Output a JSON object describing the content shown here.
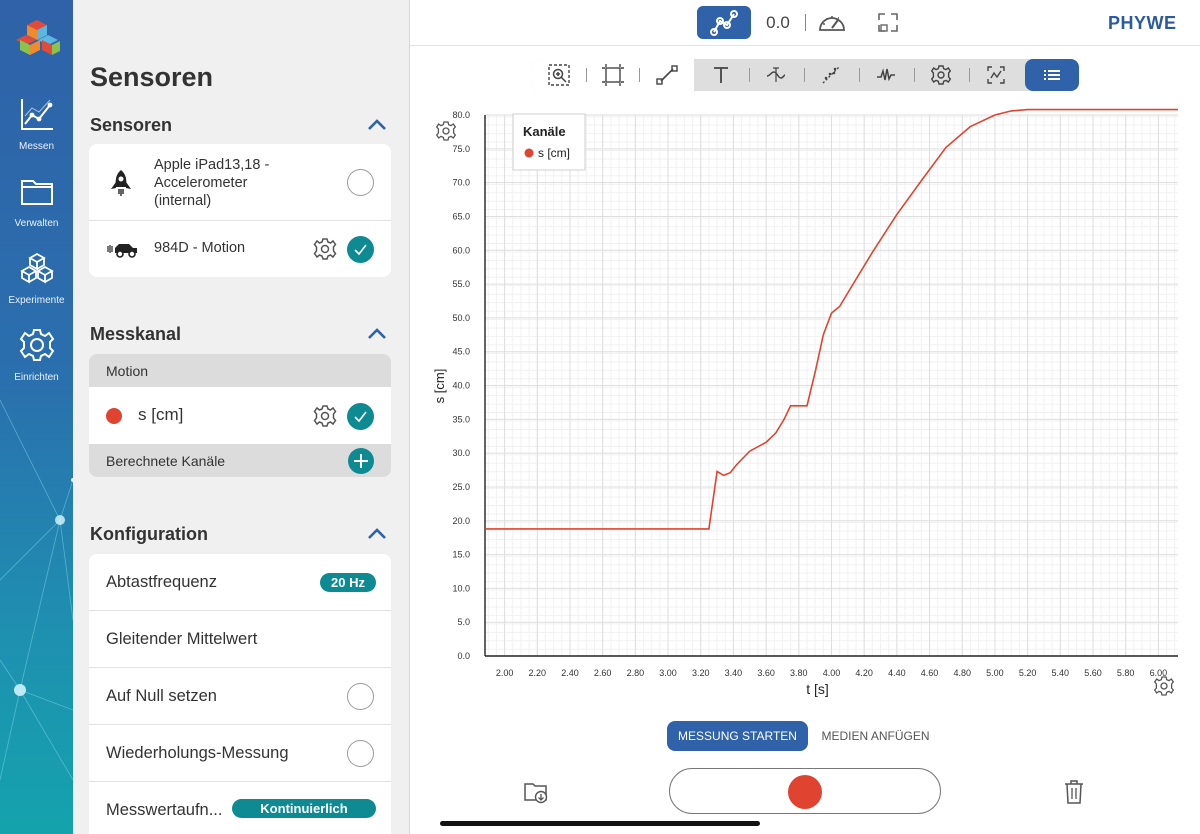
{
  "brand": "PHYWE",
  "colors": {
    "accent": "#2f62a8",
    "teal": "#0e8a93",
    "series": "#e0432f"
  },
  "rail": {
    "items": [
      {
        "label": "Messen",
        "icon": "chart-line-icon"
      },
      {
        "label": "Verwalten",
        "icon": "folder-icon"
      },
      {
        "label": "Experimente",
        "icon": "cubes-icon"
      },
      {
        "label": "Einrichten",
        "icon": "gear-icon"
      }
    ]
  },
  "panel": {
    "title": "Sensoren",
    "sensors": {
      "heading": "Sensoren",
      "items": [
        {
          "name": "Apple iPad13,18 - Accelerometer (internal)",
          "line1": "Apple iPad13,18 -",
          "line2": "Accelerometer",
          "line3": "(internal)",
          "selected": false
        },
        {
          "name": "984D - Motion",
          "selected": true
        }
      ]
    },
    "channel": {
      "heading": "Messkanal",
      "group": "Motion",
      "item": "s [cm]",
      "computed": "Berechnete Kanäle"
    },
    "config": {
      "heading": "Konfiguration",
      "rows": [
        {
          "label": "Abtastfrequenz",
          "value": "20 Hz"
        },
        {
          "label": "Gleitender Mittelwert"
        },
        {
          "label": "Auf Null setzen",
          "enabled": false
        },
        {
          "label": "Wiederholungs-Messung",
          "enabled": false
        },
        {
          "label": "Messwertaufn...",
          "value": "Kontinuierlich"
        }
      ]
    }
  },
  "topbar": {
    "value_readout": "0.0"
  },
  "bottom": {
    "start_label": "MESSUNG STARTEN",
    "media_label": "MEDIEN ANFÜGEN"
  },
  "chart_data": {
    "type": "line",
    "title": "",
    "legend_title": "Kanäle",
    "legend_position": "top-left",
    "xlabel": "t [s]",
    "ylabel": "s [cm]",
    "xlim": [
      1.88,
      6.12
    ],
    "ylim": [
      0,
      80
    ],
    "grid": true,
    "x_ticks": [
      "2.00",
      "2.20",
      "2.40",
      "2.60",
      "2.80",
      "3.00",
      "3.20",
      "3.40",
      "3.60",
      "3.80",
      "4.00",
      "4.20",
      "4.40",
      "4.60",
      "4.80",
      "5.00",
      "5.20",
      "5.40",
      "5.60",
      "5.80",
      "6.00"
    ],
    "y_ticks": [
      "0.0",
      "5.0",
      "10.0",
      "15.0",
      "20.0",
      "25.0",
      "30.0",
      "35.0",
      "40.0",
      "45.0",
      "50.0",
      "55.0",
      "60.0",
      "65.0",
      "70.0",
      "75.0",
      "80.0"
    ],
    "series": [
      {
        "name": "s [cm]",
        "color": "#e0432f",
        "x": [
          1.88,
          3.25,
          3.3,
          3.34,
          3.38,
          3.42,
          3.5,
          3.6,
          3.66,
          3.71,
          3.75,
          3.85,
          3.9,
          3.95,
          4.0,
          4.05,
          4.12,
          4.25,
          4.4,
          4.55,
          4.7,
          4.85,
          5.0,
          5.1,
          5.2,
          5.3,
          5.4,
          5.5,
          5.7,
          5.9,
          6.12
        ],
        "y": [
          18.8,
          18.8,
          27.3,
          26.7,
          27.1,
          28.3,
          30.3,
          31.6,
          33.0,
          35.0,
          37.0,
          37.0,
          42.0,
          47.5,
          50.7,
          51.7,
          54.5,
          59.7,
          65.3,
          70.3,
          75.2,
          78.3,
          80.0,
          80.6,
          80.8,
          80.8,
          80.8,
          80.8,
          80.8,
          80.8,
          80.8
        ]
      }
    ]
  }
}
